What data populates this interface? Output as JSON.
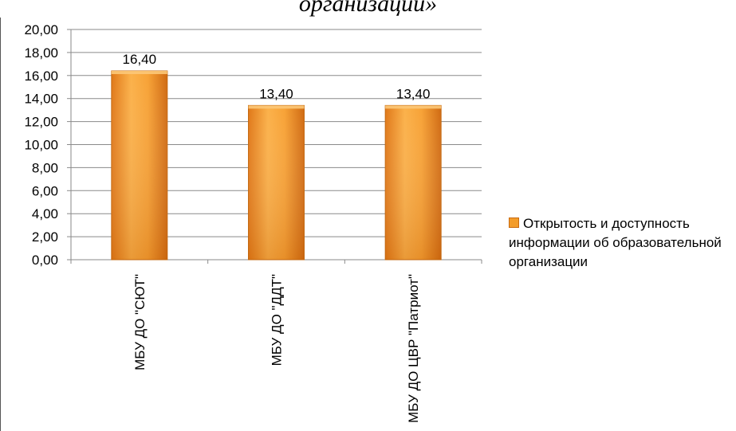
{
  "chart_data": {
    "type": "bar",
    "title": "организаций»",
    "categories": [
      "МБУ ДО \"СЮТ\"",
      "МБУ ДО \"ДДТ\"",
      "МБУ ДО ЦВР \"Патриот\""
    ],
    "series": [
      {
        "name": "Открытость и доступность информации об образовательной организации",
        "values": [
          16.4,
          13.4,
          13.4
        ],
        "color": "#f39c2a"
      }
    ],
    "data_labels": [
      "16,40",
      "13,40",
      "13,40"
    ],
    "y_ticks": [
      "0,00",
      "2,00",
      "4,00",
      "6,00",
      "8,00",
      "10,00",
      "12,00",
      "14,00",
      "16,00",
      "18,00",
      "20,00"
    ],
    "ylim": [
      0,
      20
    ],
    "grid": true,
    "legend_position": "right"
  },
  "legend": {
    "label": "Открытость и доступность информации об образовательной организации"
  }
}
